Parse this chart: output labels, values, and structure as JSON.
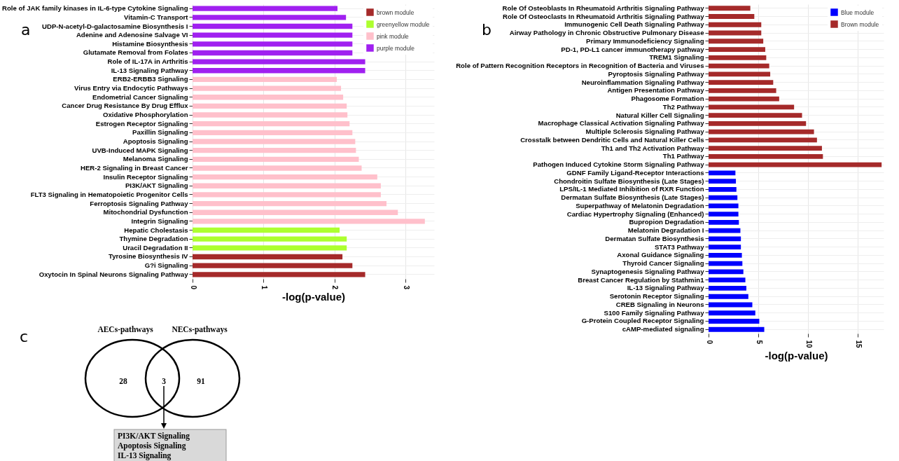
{
  "chart_data": [
    {
      "type": "bar",
      "orientation": "horizontal",
      "title": "a",
      "xlabel": "-log(p-value)",
      "categories": [
        "Role of JAK family kinases in IL-6-type Cytokine Signaling",
        "Vitamin-C Transport",
        "UDP-N-acetyl-D-galactosamine Biosynthesis I",
        "Adenine and Adenosine Salvage VI",
        "Histamine Biosynthesis",
        "Glutamate Removal from Folates",
        "Role of IL-17A in Arthritis",
        "IL-13 Signaling Pathway",
        "ERB2-ERBB3 Signaling",
        "Virus Entry via Endocytic Pathways",
        "Endometrial Cancer Signaling",
        "Cancer Drug Resistance By Drug Efflux",
        "Oxidative Phosphorylation",
        "Estrogen Receptor Signaling",
        "Paxillin Signaling",
        "Apoptosis Signaling",
        "UVB-Induced MAPK Signaling",
        "Melanoma Signaling",
        "HER-2 Signaling in Breast Cancer",
        "Insulin Receptor Signaling",
        "PI3K/AKT Signaling",
        "FLT3 Signaling in Hematopoietic Progenitor Cells",
        "Ferroptosis Signaling Pathway",
        "Mitochondrial Dysfunction",
        "Integrin Signaling",
        "Hepatic Cholestasis",
        "Thymine Degradation",
        "Uracil Degradation II",
        "Tyrosine Biosynthesis IV",
        "G?i Signaling",
        "Oxytocin In Spinal Neurons Signaling Pathway"
      ],
      "series": [
        {
          "name": "brown module",
          "color": "#a52a2a",
          "values": [
            null,
            null,
            null,
            null,
            null,
            null,
            null,
            null,
            null,
            null,
            null,
            null,
            null,
            null,
            null,
            null,
            null,
            null,
            null,
            null,
            null,
            null,
            null,
            null,
            null,
            null,
            null,
            null,
            2.11,
            2.25,
            2.43
          ]
        },
        {
          "name": "greenyellow module",
          "color": "#adff2f",
          "values": [
            null,
            null,
            null,
            null,
            null,
            null,
            null,
            null,
            null,
            null,
            null,
            null,
            null,
            null,
            null,
            null,
            null,
            null,
            null,
            null,
            null,
            null,
            null,
            null,
            null,
            2.07,
            2.17,
            2.17,
            null,
            null,
            null
          ]
        },
        {
          "name": "pink module",
          "color": "#ffc0cb",
          "values": [
            null,
            null,
            null,
            null,
            null,
            null,
            null,
            null,
            2.03,
            2.09,
            2.12,
            2.17,
            2.18,
            2.21,
            2.25,
            2.29,
            2.3,
            2.34,
            2.38,
            2.6,
            2.65,
            2.65,
            2.73,
            2.89,
            3.27,
            null,
            null,
            null,
            null,
            null,
            null
          ]
        },
        {
          "name": "purple module",
          "color": "#a020f0",
          "values": [
            2.04,
            2.16,
            2.25,
            2.25,
            2.25,
            2.25,
            2.43,
            2.43,
            null,
            null,
            null,
            null,
            null,
            null,
            null,
            null,
            null,
            null,
            null,
            null,
            null,
            null,
            null,
            null,
            null,
            null,
            null,
            null,
            null,
            null,
            null
          ]
        }
      ],
      "xlim": [
        0,
        3.4
      ],
      "xticks": [
        0,
        1,
        2,
        3
      ],
      "grid": true,
      "legend": "top right"
    },
    {
      "type": "bar",
      "orientation": "horizontal",
      "title": "b",
      "xlabel": "-log(p-value)",
      "categories": [
        "Role Of Osteoblasts In Rheumatoid Arthritis Signaling Pathway",
        "Role Of Osteoclasts In Rheumatoid Arthritis Signaling Pathway",
        "Immunogenic Cell Death Signaling Pathway",
        "Airway Pathology in Chronic Obstructive Pulmonary Disease",
        "Primary Immunodeficiency Signaling",
        "PD-1, PD-L1 cancer immunotherapy pathway",
        "TREM1 Signaling",
        "Role of Pattern Recognition Receptors in Recognition of Bacteria and Viruses",
        "Pyroptosis Signaling Pathway",
        "Neuroinflammation Signaling Pathway",
        "Antigen Presentation Pathway",
        "Phagosome Formation",
        "Th2 Pathway",
        "Natural Killer Cell Signaling",
        "Macrophage Classical Activation Signaling Pathway",
        "Multiple Sclerosis Signaling Pathway",
        "Crosstalk between Dendritic Cells and Natural Killer Cells",
        "Th1 and Th2 Activation Pathway",
        "Th1 Pathway",
        "Pathogen Induced Cytokine Storm Signaling Pathway",
        "GDNF Family Ligand-Receptor Interactions",
        "Chondroitin Sulfate Biosynthesis (Late Stages)",
        "LPS/IL-1 Mediated Inhibition of RXR Function",
        "Dermatan Sulfate Biosynthesis (Late Stages)",
        "Superpathway of Melatonin Degradation",
        "Cardiac Hypertrophy Signaling (Enhanced)",
        "Bupropion Degradation",
        "Melatonin Degradation I",
        "Dermatan Sulfate Biosynthesis",
        "STAT3 Pathway",
        "Axonal Guidance Signaling",
        "Thyroid Cancer Signaling",
        "Synaptogenesis Signaling Pathway",
        "Breast Cancer Regulation by Stathmin1",
        "IL-13 Signaling Pathway",
        "Serotonin Receptor Signaling",
        "CREB Signaling in Neurons",
        "S100 Family Signaling Pathway",
        "G-Protein Coupled Receptor Signaling",
        "cAMP-mediated signaling"
      ],
      "series": [
        {
          "name": "Blue module",
          "color": "#0000ff",
          "values": [
            null,
            null,
            null,
            null,
            null,
            null,
            null,
            null,
            null,
            null,
            null,
            null,
            null,
            null,
            null,
            null,
            null,
            null,
            null,
            null,
            2.7,
            2.75,
            2.8,
            2.9,
            3.0,
            3.0,
            3.05,
            3.2,
            3.25,
            3.25,
            3.35,
            3.4,
            3.5,
            3.7,
            3.8,
            4.0,
            4.4,
            4.7,
            5.1,
            5.6
          ]
        },
        {
          "name": "Brown module",
          "color": "#a52a2a",
          "values": [
            4.2,
            4.6,
            5.3,
            5.3,
            5.5,
            5.7,
            5.8,
            6.1,
            6.2,
            6.5,
            6.8,
            7.1,
            8.6,
            9.4,
            9.8,
            10.6,
            10.9,
            11.4,
            11.5,
            17.4,
            null,
            null,
            null,
            null,
            null,
            null,
            null,
            null,
            null,
            null,
            null,
            null,
            null,
            null,
            null,
            null,
            null,
            null,
            null,
            null
          ]
        }
      ],
      "xlim": [
        0,
        17.6
      ],
      "xticks": [
        0,
        5,
        10,
        15
      ],
      "grid": true,
      "legend": "top right"
    },
    {
      "type": "other",
      "title": "c",
      "categories": [
        "AECs-pathways",
        "NECs-pathways"
      ],
      "annotations": [
        "28",
        "3",
        "91",
        "PI3K/AKT Signaling",
        "Apoptosis Signaling",
        "IL-13 Signaling"
      ]
    }
  ]
}
